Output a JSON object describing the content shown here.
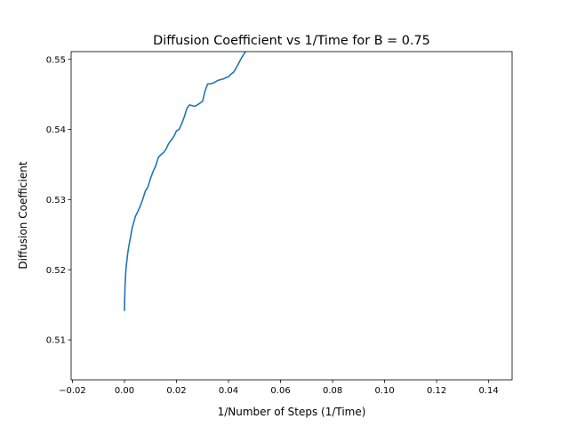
{
  "chart_data": {
    "type": "line",
    "title": "Diffusion Coefficient vs 1/Time for B = 0.75",
    "xlabel": "1/Number of Steps (1/Time)",
    "ylabel": "Diffusion Coefficient",
    "xlim": [
      -0.0205,
      0.149
    ],
    "ylim": [
      0.5043,
      0.5511
    ],
    "xticks": [
      -0.02,
      0.0,
      0.02,
      0.04,
      0.06,
      0.08,
      0.1,
      0.12,
      0.14
    ],
    "xtick_labels": [
      "−0.02",
      "0.00",
      "0.02",
      "0.04",
      "0.06",
      "0.08",
      "0.10",
      "0.12",
      "0.14"
    ],
    "yticks": [
      0.51,
      0.52,
      0.53,
      0.54,
      0.55
    ],
    "ytick_labels": [
      "0.51",
      "0.52",
      "0.53",
      "0.54",
      "0.55"
    ],
    "grid": false,
    "series_color": "#1f77b4",
    "series": [
      {
        "x": [
          0.0,
          0.0001,
          0.0002,
          0.0004,
          0.0006,
          0.0009,
          0.0012,
          0.0016,
          0.002,
          0.0025,
          0.003,
          0.0036,
          0.0042,
          0.005,
          0.006,
          0.007,
          0.008,
          0.009,
          0.01,
          0.011,
          0.012,
          0.013,
          0.014,
          0.015,
          0.016,
          0.017,
          0.018,
          0.019,
          0.02,
          0.021,
          0.022,
          0.023,
          0.024,
          0.025,
          0.026,
          0.027,
          0.028,
          0.03,
          0.031,
          0.032,
          0.033,
          0.034,
          0.035,
          0.036,
          0.037,
          0.038,
          0.039,
          0.04,
          0.041,
          0.042,
          0.043,
          0.044,
          0.045,
          0.046,
          0.0465
        ],
        "y": [
          0.5142,
          0.516,
          0.5175,
          0.519,
          0.5202,
          0.5212,
          0.5222,
          0.5232,
          0.524,
          0.525,
          0.526,
          0.5268,
          0.5276,
          0.5282,
          0.529,
          0.53,
          0.5312,
          0.5318,
          0.533,
          0.534,
          0.5348,
          0.536,
          0.5364,
          0.5367,
          0.5372,
          0.538,
          0.5385,
          0.539,
          0.5398,
          0.54,
          0.5408,
          0.5418,
          0.543,
          0.5435,
          0.5434,
          0.5433,
          0.5435,
          0.544,
          0.5455,
          0.5465,
          0.5465,
          0.5466,
          0.5468,
          0.547,
          0.5471,
          0.5472,
          0.5474,
          0.5475,
          0.5479,
          0.5482,
          0.5488,
          0.5495,
          0.5502,
          0.5508,
          0.5511
        ]
      }
    ]
  }
}
